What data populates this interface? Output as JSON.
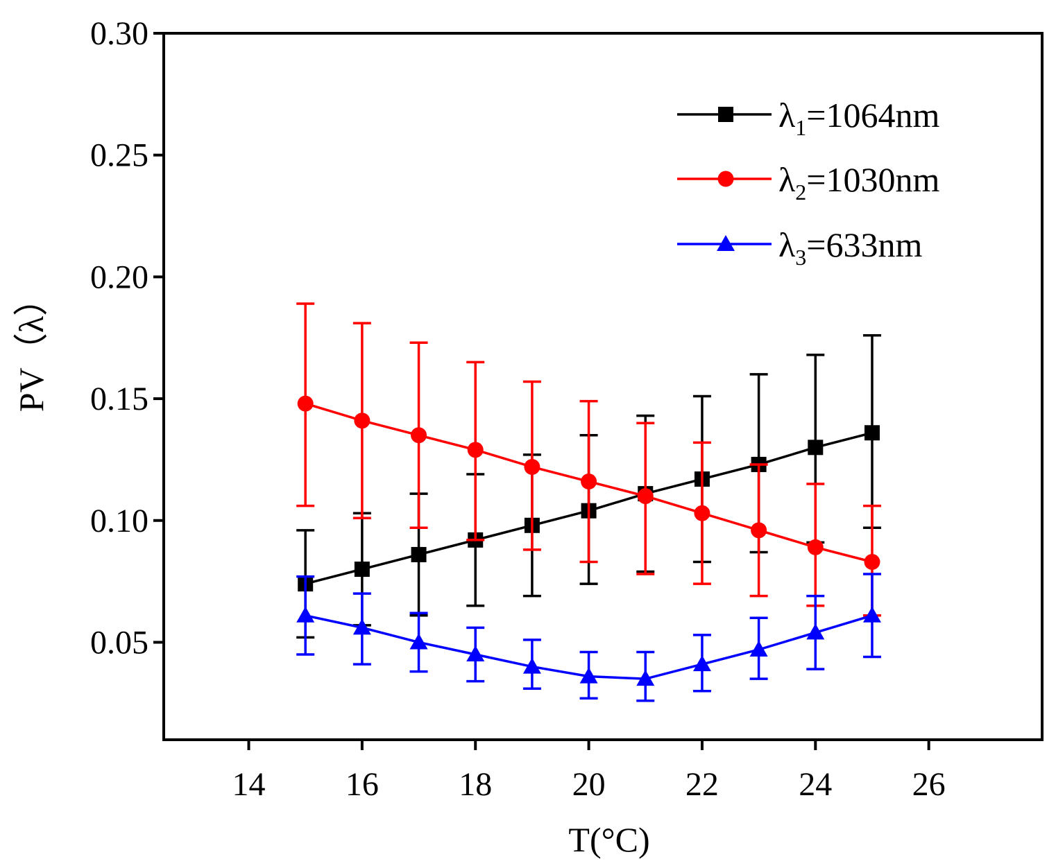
{
  "chart_data": {
    "type": "line",
    "title": "",
    "xlabel": "T(°C)",
    "ylabel": "PV（λ）",
    "xlim": [
      12.5,
      28
    ],
    "ylim": [
      0.01,
      0.3
    ],
    "xticks": [
      14,
      16,
      18,
      20,
      22,
      24,
      26
    ],
    "xtick_labels": [
      "14",
      "16",
      "18",
      "20",
      "22",
      "24",
      "26"
    ],
    "yticks": [
      0.05,
      0.1,
      0.15,
      0.2,
      0.25,
      0.3
    ],
    "ytick_labels": [
      "0.05",
      "0.10",
      "0.15",
      "0.20",
      "0.25",
      "0.30"
    ],
    "grid": false,
    "legend_position": "top-right",
    "x": [
      15,
      16,
      17,
      18,
      19,
      20,
      21,
      22,
      23,
      24,
      25
    ],
    "series": [
      {
        "name": "λ1=1064nm",
        "legend_symbol": "λ",
        "legend_sub": "1",
        "legend_rest": "=1064nm",
        "color": "#000000",
        "marker": "square",
        "values": [
          0.074,
          0.08,
          0.086,
          0.092,
          0.098,
          0.104,
          0.111,
          0.117,
          0.123,
          0.13,
          0.136
        ],
        "error_low": [
          0.052,
          0.057,
          0.061,
          0.065,
          0.069,
          0.074,
          0.079,
          0.083,
          0.087,
          0.091,
          0.097
        ],
        "error_high": [
          0.096,
          0.103,
          0.111,
          0.119,
          0.127,
          0.135,
          0.143,
          0.151,
          0.16,
          0.168,
          0.176
        ]
      },
      {
        "name": "λ2=1030nm",
        "legend_symbol": "λ",
        "legend_sub": "2",
        "legend_rest": "=1030nm",
        "color": "#ff0000",
        "marker": "circle",
        "values": [
          0.148,
          0.141,
          0.135,
          0.129,
          0.122,
          0.116,
          0.11,
          0.103,
          0.096,
          0.089,
          0.083
        ],
        "error_low": [
          0.106,
          0.101,
          0.097,
          0.092,
          0.088,
          0.083,
          0.078,
          0.074,
          0.069,
          0.065,
          0.061
        ],
        "error_high": [
          0.189,
          0.181,
          0.173,
          0.165,
          0.157,
          0.149,
          0.14,
          0.132,
          0.123,
          0.115,
          0.106
        ]
      },
      {
        "name": "λ3=633nm",
        "legend_symbol": "λ",
        "legend_sub": "3",
        "legend_rest": "=633nm",
        "color": "#0000ff",
        "marker": "triangle",
        "values": [
          0.061,
          0.056,
          0.05,
          0.045,
          0.04,
          0.036,
          0.035,
          0.041,
          0.047,
          0.054,
          0.061
        ],
        "error_low": [
          0.045,
          0.041,
          0.038,
          0.034,
          0.031,
          0.027,
          0.026,
          0.03,
          0.035,
          0.039,
          0.044
        ],
        "error_high": [
          0.077,
          0.07,
          0.062,
          0.056,
          0.051,
          0.046,
          0.046,
          0.053,
          0.06,
          0.069,
          0.078
        ]
      }
    ]
  }
}
